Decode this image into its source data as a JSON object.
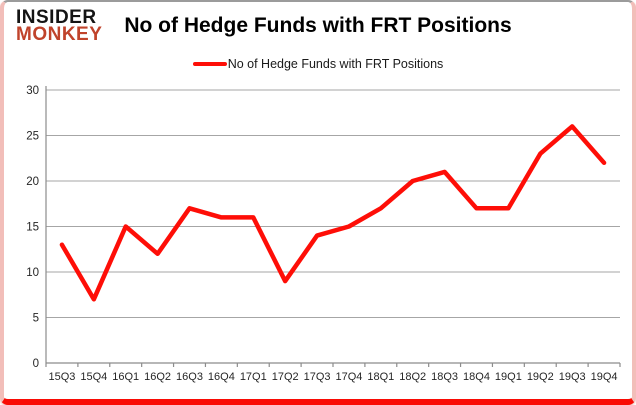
{
  "brand": {
    "line1": "INSIDER",
    "line2": "MONKEY"
  },
  "header": {
    "title": "No of Hedge Funds with FRT Positions"
  },
  "legend": {
    "label": "No of Hedge Funds with FRT Positions"
  },
  "colors": {
    "line": "#fe0e07",
    "brand_accent": "#c0432b",
    "gridline": "#a6a6a6",
    "axis": "#8c8c8c",
    "tick_label": "#262626",
    "frame_sides": "#f2beb9",
    "frame_bottom": "#f90b04",
    "frame_top": "#9b9b9b"
  },
  "chart_data": {
    "type": "line",
    "title": "No of Hedge Funds with FRT Positions",
    "categories": [
      "15Q3",
      "15Q4",
      "16Q1",
      "16Q2",
      "16Q3",
      "16Q4",
      "17Q1",
      "17Q2",
      "17Q3",
      "17Q4",
      "18Q1",
      "18Q2",
      "18Q3",
      "18Q4",
      "19Q1",
      "19Q2",
      "19Q3",
      "19Q4"
    ],
    "series": [
      {
        "name": "No of Hedge Funds with FRT Positions",
        "values": [
          13,
          7,
          15,
          12,
          17,
          16,
          16,
          9,
          14,
          15,
          17,
          20,
          21,
          17,
          17,
          23,
          26,
          22
        ]
      }
    ],
    "xlabel": "",
    "ylabel": "",
    "ylim": [
      0,
      30
    ],
    "yticks": [
      0,
      5,
      10,
      15,
      20,
      25,
      30
    ],
    "grid": true,
    "legend_position": "top"
  }
}
